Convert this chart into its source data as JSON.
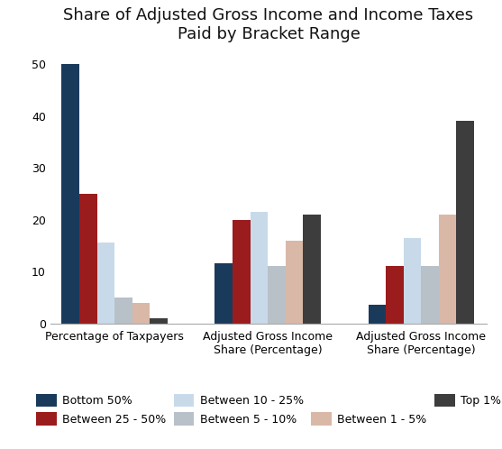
{
  "title": "Share of Adjusted Gross Income and Income Taxes\nPaid by Bracket Range",
  "categories": [
    "Percentage of Taxpayers",
    "Adjusted Gross Income\nShare (Percentage)",
    "Adjusted Gross Income\nShare (Percentage)"
  ],
  "series": [
    {
      "label": "Bottom 50%",
      "color": "#1a3a5c",
      "values": [
        50,
        11.5,
        3.5
      ]
    },
    {
      "label": "Between 25 - 50%",
      "color": "#9b1c1c",
      "values": [
        25,
        20,
        11
      ]
    },
    {
      "label": "Between 10 - 25%",
      "color": "#c8daea",
      "values": [
        15.5,
        21.5,
        16.5
      ]
    },
    {
      "label": "Between 5 - 10%",
      "color": "#b8c0c8",
      "values": [
        5,
        11,
        11
      ]
    },
    {
      "label": "Between 1 - 5%",
      "color": "#d9b8a8",
      "values": [
        4,
        16,
        21
      ]
    },
    {
      "label": "Top 1%",
      "color": "#3d3d3d",
      "values": [
        1,
        21,
        39
      ]
    }
  ],
  "ylim": [
    0,
    52
  ],
  "yticks": [
    0,
    10,
    20,
    30,
    40,
    50
  ],
  "background_color": "#ffffff",
  "title_fontsize": 13,
  "legend_fontsize": 9,
  "tick_fontsize": 9,
  "bar_width": 0.115
}
